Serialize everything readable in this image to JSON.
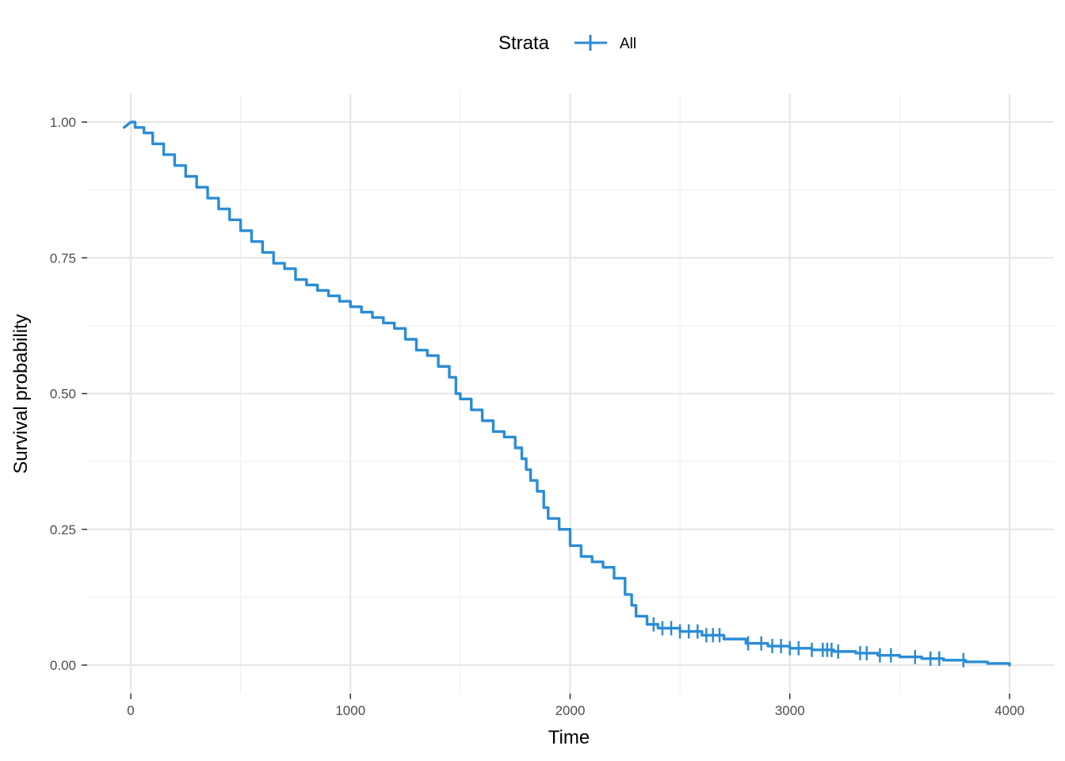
{
  "chart_data": {
    "type": "line",
    "title": "",
    "xlabel": "Time",
    "ylabel": "Survival probability",
    "xlim": [
      -40,
      4100
    ],
    "ylim": [
      -0.05,
      1.05
    ],
    "x_ticks": [
      0,
      1000,
      2000,
      3000,
      4000
    ],
    "x_tick_labels": [
      "0",
      "1000",
      "2000",
      "3000",
      "4000"
    ],
    "y_ticks": [
      0,
      0.25,
      0.5,
      0.75,
      1.0
    ],
    "y_tick_labels": [
      "0.00",
      "0.25",
      "0.50",
      "0.75",
      "1.00"
    ],
    "grid": true,
    "legend": {
      "title": "Strata",
      "position": "top",
      "entries": [
        "All"
      ]
    },
    "series": [
      {
        "name": "All",
        "color": "#2b8cd6",
        "step": true,
        "x": [
          0,
          20,
          60,
          100,
          150,
          200,
          250,
          300,
          350,
          400,
          450,
          500,
          550,
          600,
          650,
          700,
          750,
          800,
          850,
          900,
          950,
          1000,
          1050,
          1100,
          1150,
          1200,
          1250,
          1300,
          1350,
          1400,
          1450,
          1480,
          1500,
          1550,
          1600,
          1650,
          1700,
          1750,
          1780,
          1800,
          1820,
          1850,
          1880,
          1900,
          1950,
          2000,
          2050,
          2100,
          2150,
          2200,
          2250,
          2280,
          2300,
          2350,
          2400,
          2500,
          2600,
          2700,
          2800,
          2900,
          3000,
          3100,
          3200,
          3300,
          3400,
          3500,
          3600,
          3700,
          3800,
          3900,
          4000
        ],
        "y": [
          1.0,
          0.99,
          0.98,
          0.96,
          0.94,
          0.92,
          0.9,
          0.88,
          0.86,
          0.84,
          0.82,
          0.8,
          0.78,
          0.76,
          0.74,
          0.73,
          0.71,
          0.7,
          0.69,
          0.68,
          0.67,
          0.66,
          0.65,
          0.64,
          0.63,
          0.62,
          0.6,
          0.58,
          0.57,
          0.55,
          0.53,
          0.5,
          0.49,
          0.47,
          0.45,
          0.43,
          0.42,
          0.4,
          0.38,
          0.36,
          0.34,
          0.32,
          0.29,
          0.27,
          0.25,
          0.22,
          0.2,
          0.19,
          0.18,
          0.16,
          0.13,
          0.11,
          0.09,
          0.075,
          0.068,
          0.062,
          0.055,
          0.048,
          0.04,
          0.035,
          0.031,
          0.028,
          0.025,
          0.022,
          0.018,
          0.015,
          0.012,
          0.009,
          0.006,
          0.003,
          0.0
        ]
      }
    ],
    "censor_x": [
      2380,
      2420,
      2460,
      2500,
      2540,
      2580,
      2620,
      2650,
      2680,
      2810,
      2870,
      2920,
      2960,
      3000,
      3040,
      3100,
      3150,
      3170,
      3190,
      3220,
      3320,
      3350,
      3410,
      3460,
      3570,
      3640,
      3680,
      3790
    ]
  }
}
